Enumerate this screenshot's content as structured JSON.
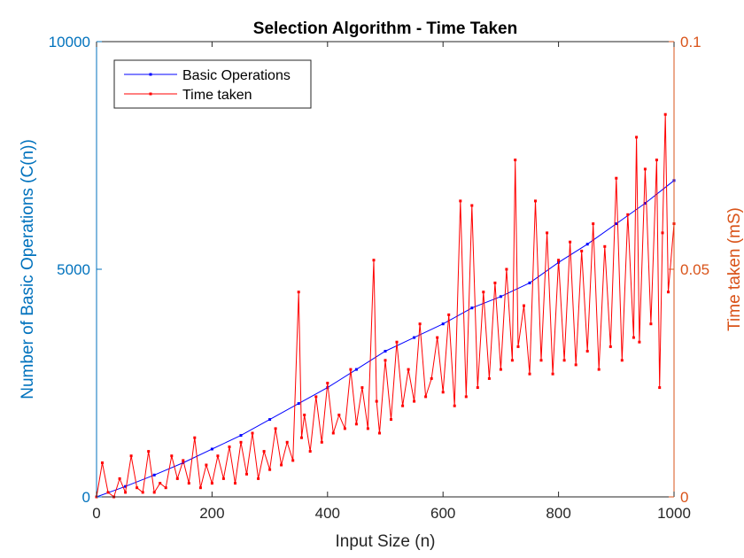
{
  "colors": {
    "left_axis": "#0072BD",
    "right_axis": "#D95319",
    "series_ops": "#0000FF",
    "series_time": "#FF0000",
    "axis_black": "#262626"
  },
  "chart_data": {
    "type": "line",
    "title": "Selection Algorithm - Time Taken",
    "xlabel": "Input Size (n)",
    "ylabel_left": "Number of Basic Operations (C(n))",
    "ylabel_right": "Time taken (mS)",
    "xlim": [
      0,
      1000
    ],
    "ylim_left": [
      0,
      10000
    ],
    "ylim_right": [
      0,
      0.1
    ],
    "x_ticks": [
      "0",
      "200",
      "400",
      "600",
      "800",
      "1000"
    ],
    "y_left_ticks": [
      "0",
      "5000",
      "10000"
    ],
    "y_right_ticks": [
      "0",
      "0.05",
      "0.1"
    ],
    "grid": false,
    "legend_position": "top-left",
    "series": [
      {
        "name": "Basic Operations",
        "axis": "left",
        "x": [
          0,
          50,
          100,
          150,
          200,
          250,
          300,
          350,
          400,
          450,
          500,
          550,
          600,
          650,
          700,
          750,
          800,
          850,
          900,
          950,
          1000
        ],
        "y": [
          0,
          230,
          480,
          750,
          1050,
          1350,
          1700,
          2050,
          2400,
          2800,
          3200,
          3500,
          3800,
          4150,
          4400,
          4700,
          5150,
          5550,
          6000,
          6450,
          6950
        ]
      },
      {
        "name": "Time taken",
        "axis": "right",
        "x": [
          0,
          10,
          20,
          30,
          40,
          50,
          60,
          70,
          80,
          90,
          100,
          110,
          120,
          130,
          140,
          150,
          160,
          170,
          180,
          190,
          200,
          210,
          220,
          230,
          240,
          250,
          260,
          270,
          280,
          290,
          300,
          310,
          320,
          330,
          340,
          350,
          355,
          360,
          370,
          380,
          390,
          400,
          410,
          420,
          430,
          440,
          450,
          460,
          470,
          480,
          485,
          490,
          500,
          510,
          520,
          530,
          540,
          550,
          560,
          570,
          580,
          590,
          600,
          610,
          620,
          630,
          640,
          650,
          660,
          670,
          680,
          690,
          700,
          710,
          720,
          725,
          730,
          740,
          750,
          760,
          770,
          780,
          790,
          800,
          810,
          820,
          830,
          840,
          850,
          860,
          870,
          880,
          890,
          900,
          910,
          920,
          930,
          935,
          940,
          950,
          960,
          970,
          975,
          980,
          985,
          990,
          1000
        ],
        "y": [
          0.0,
          0.0075,
          0.001,
          0.0,
          0.004,
          0.001,
          0.009,
          0.002,
          0.001,
          0.01,
          0.001,
          0.003,
          0.002,
          0.009,
          0.004,
          0.008,
          0.003,
          0.013,
          0.002,
          0.007,
          0.003,
          0.009,
          0.004,
          0.011,
          0.003,
          0.012,
          0.005,
          0.014,
          0.004,
          0.01,
          0.006,
          0.015,
          0.007,
          0.012,
          0.008,
          0.045,
          0.013,
          0.018,
          0.01,
          0.022,
          0.012,
          0.025,
          0.014,
          0.018,
          0.015,
          0.028,
          0.016,
          0.024,
          0.015,
          0.052,
          0.021,
          0.014,
          0.03,
          0.017,
          0.034,
          0.02,
          0.028,
          0.021,
          0.038,
          0.022,
          0.026,
          0.035,
          0.023,
          0.04,
          0.02,
          0.065,
          0.022,
          0.064,
          0.024,
          0.045,
          0.026,
          0.047,
          0.028,
          0.05,
          0.03,
          0.074,
          0.033,
          0.042,
          0.027,
          0.065,
          0.03,
          0.058,
          0.027,
          0.052,
          0.03,
          0.056,
          0.029,
          0.054,
          0.032,
          0.06,
          0.028,
          0.055,
          0.033,
          0.07,
          0.03,
          0.062,
          0.035,
          0.079,
          0.034,
          0.072,
          0.038,
          0.074,
          0.024,
          0.058,
          0.084,
          0.045,
          0.06
        ]
      }
    ]
  }
}
